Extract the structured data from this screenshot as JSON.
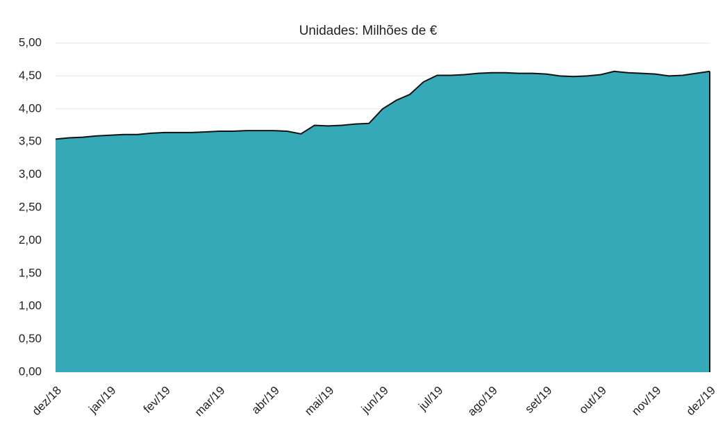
{
  "chart_data": {
    "type": "area",
    "title": "Unidades: Milhões de €",
    "categories": [
      "dez/18",
      null,
      null,
      null,
      "jan/19",
      null,
      null,
      null,
      "fev/19",
      null,
      null,
      null,
      "mar/19",
      null,
      null,
      null,
      "abr/19",
      null,
      null,
      null,
      "mai/19",
      null,
      null,
      null,
      "jun/19",
      null,
      null,
      null,
      "jul/19",
      null,
      null,
      null,
      "ago/19",
      null,
      null,
      null,
      "set/19",
      null,
      null,
      null,
      "out/19",
      null,
      null,
      null,
      "nov/19",
      null,
      null,
      null,
      "dez/19"
    ],
    "series": [
      {
        "color": "#35a9b8",
        "values": [
          3.54,
          3.56,
          3.57,
          3.59,
          3.6,
          3.61,
          3.61,
          3.63,
          3.64,
          3.64,
          3.64,
          3.65,
          3.66,
          3.66,
          3.67,
          3.67,
          3.67,
          3.66,
          3.62,
          3.75,
          3.74,
          3.75,
          3.77,
          3.78,
          4.0,
          4.13,
          4.22,
          4.41,
          4.51,
          4.51,
          4.52,
          4.54,
          4.55,
          4.55,
          4.54,
          4.54,
          4.53,
          4.5,
          4.49,
          4.5,
          4.52,
          4.57,
          4.55,
          4.54,
          4.53,
          4.5,
          4.51,
          4.54,
          4.57
        ]
      }
    ],
    "ylim": [
      0,
      5
    ],
    "yticks": [
      {
        "value": 0,
        "label": "0,00"
      },
      {
        "value": 0.5,
        "label": "0,50"
      },
      {
        "value": 1,
        "label": "1,00"
      },
      {
        "value": 1.5,
        "label": "1,50"
      },
      {
        "value": 2,
        "label": "2,00"
      },
      {
        "value": 2.5,
        "label": "2,50"
      },
      {
        "value": 3,
        "label": "3,00"
      },
      {
        "value": 3.5,
        "label": "3,50"
      },
      {
        "value": 4,
        "label": "4,00"
      },
      {
        "value": 4.5,
        "label": "4,50"
      },
      {
        "value": 5,
        "label": "5,00"
      }
    ],
    "grid": true
  }
}
